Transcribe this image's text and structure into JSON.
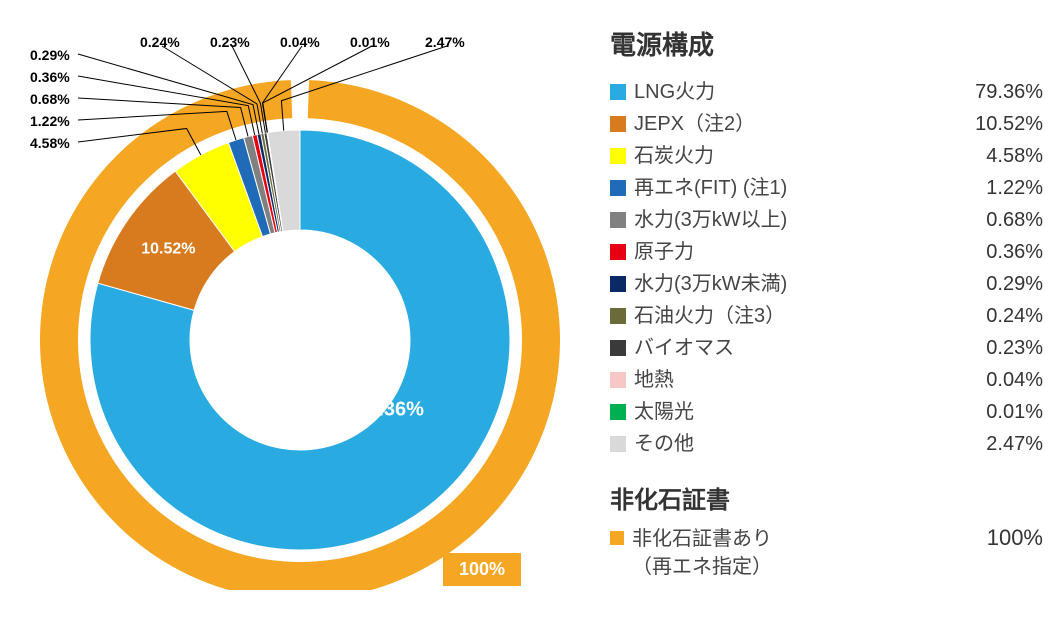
{
  "chart": {
    "type": "donut",
    "outer_ring": {
      "value": 100,
      "value_text": "100%",
      "color": "#f5a623",
      "thickness": 38
    },
    "inner_donut_outer_r": 210,
    "inner_donut_inner_r": 110,
    "start_angle_deg": 90,
    "slices": [
      {
        "label": "LNG火力",
        "value": 79.36,
        "text": "79.36%",
        "color": "#29abe2"
      },
      {
        "label": "JEPX（注2）",
        "value": 10.52,
        "text": "10.52%",
        "color": "#d87b1f"
      },
      {
        "label": "石炭火力",
        "value": 4.58,
        "text": "4.58%",
        "color": "#ffff00"
      },
      {
        "label": "再エネ(FIT) (注1)",
        "value": 1.22,
        "text": "1.22%",
        "color": "#1f6bb8"
      },
      {
        "label": "水力(3万kW以上)",
        "value": 0.68,
        "text": "0.68%",
        "color": "#808080"
      },
      {
        "label": "原子力",
        "value": 0.36,
        "text": "0.36%",
        "color": "#e60012"
      },
      {
        "label": "水力(3万kW未満)",
        "value": 0.29,
        "text": "0.29%",
        "color": "#0a2a66"
      },
      {
        "label": "石油火力（注3）",
        "value": 0.24,
        "text": "0.24%",
        "color": "#6b6b3a"
      },
      {
        "label": "バイオマス",
        "value": 0.23,
        "text": "0.23%",
        "color": "#3a3a3a"
      },
      {
        "label": "地熱",
        "value": 0.04,
        "text": "0.04%",
        "color": "#f7c6c6"
      },
      {
        "label": "太陽光",
        "value": 0.01,
        "text": "0.01%",
        "color": "#00b050"
      },
      {
        "label": "その他",
        "value": 2.47,
        "text": "2.47%",
        "color": "#d9d9d9"
      }
    ],
    "inner_direct_labels": [
      {
        "slice": 0,
        "color": "#ffffff",
        "fontsize": 20
      },
      {
        "slice": 1,
        "color": "#ffffff",
        "fontsize": 16
      }
    ],
    "callouts": [
      2,
      3,
      4,
      5,
      6,
      7,
      8,
      9,
      10,
      11
    ],
    "callout_fontsize": 14,
    "callout_color": "#000000",
    "leader_color": "#000000"
  },
  "legend": {
    "title": "電源構成",
    "title_fontsize": 26,
    "row_fontsize": 20,
    "section2_title": "非化石証書",
    "section2_items": [
      {
        "label_line1": "非化石証書あり",
        "label_line2": "（再エネ指定）",
        "value": "100%",
        "color": "#f5a623"
      }
    ]
  },
  "colors": {
    "bg": "#ffffff",
    "text": "#333333"
  }
}
